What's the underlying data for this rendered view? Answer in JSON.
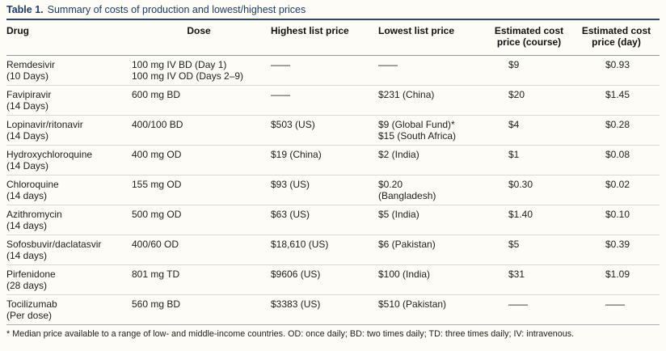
{
  "table": {
    "title_label": "Table 1.",
    "title_text": "Summary of costs of production and lowest/highest prices",
    "accent_color": "#1c3c6d",
    "columns": {
      "drug": "Drug",
      "dose": "Dose",
      "highest": "Highest list price",
      "lowest": "Lowest list price",
      "course": "Estimated cost\nprice (course)",
      "day": "Estimated cost\nprice (day)"
    },
    "rows": [
      {
        "drug": "Remdesivir\n(10 Days)",
        "dose": "100 mg IV BD (Day 1)\n100 mg IV OD (Days 2–9)",
        "highest": "——",
        "lowest": "——",
        "course": "$9",
        "day": "$0.93"
      },
      {
        "drug": "Favipiravir\n(14 Days)",
        "dose": "600 mg BD",
        "highest": "——",
        "lowest": "$231 (China)",
        "course": "$20",
        "day": "$1.45"
      },
      {
        "drug": "Lopinavir/ritonavir\n(14 Days)",
        "dose": "400/100 BD",
        "highest": "$503 (US)",
        "lowest": "$9 (Global Fund)*\n$15 (South Africa)",
        "course": "$4",
        "day": "$0.28"
      },
      {
        "drug": "Hydroxychloroquine\n(14 Days)",
        "dose": "400 mg OD",
        "highest": "$19 (China)",
        "lowest": "$2 (India)",
        "course": "$1",
        "day": "$0.08"
      },
      {
        "drug": "Chloroquine\n(14 days)",
        "dose": "155 mg OD",
        "highest": "$93 (US)",
        "lowest": "$0.20\n(Bangladesh)",
        "course": "$0.30",
        "day": "$0.02"
      },
      {
        "drug": "Azithromycin\n(14 days)",
        "dose": "500 mg OD",
        "highest": "$63 (US)",
        "lowest": "$5 (India)",
        "course": "$1.40",
        "day": "$0.10"
      },
      {
        "drug": "Sofosbuvir/daclatasvir\n(14 days)",
        "dose": "400/60 OD",
        "highest": "$18,610 (US)",
        "lowest": "$6 (Pakistan)",
        "course": "$5",
        "day": "$0.39"
      },
      {
        "drug": "Pirfenidone\n(28 days)",
        "dose": "801 mg TD",
        "highest": "$9606 (US)",
        "lowest": "$100 (India)",
        "course": "$31",
        "day": "$1.09"
      },
      {
        "drug": "Tocilizumab\n(Per dose)",
        "dose": "560 mg BD",
        "highest": "$3383 (US)",
        "lowest": "$510 (Pakistan)",
        "course": "——",
        "day": "——"
      }
    ],
    "footnote": "* Median price available to a range of low- and middle-income countries. OD: once daily; BD: two times daily; TD: three times daily; IV: intravenous."
  }
}
